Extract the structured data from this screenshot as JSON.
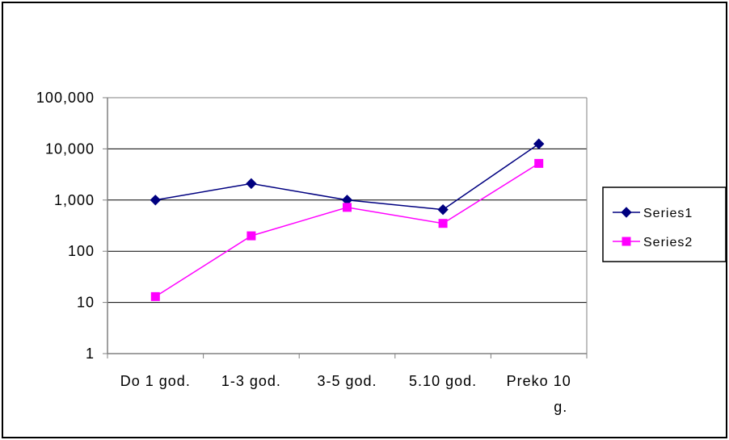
{
  "chart_data": {
    "type": "line",
    "title": "",
    "xlabel": "",
    "ylabel": "",
    "y_scale": "log",
    "ylim": [
      1,
      100000
    ],
    "y_ticks": [
      1,
      10,
      100,
      1000,
      10000,
      100000
    ],
    "y_tick_labels": [
      "1",
      "10",
      "100",
      "1,000",
      "10,000",
      "100,000"
    ],
    "categories": [
      "Do 1 god.",
      "1-3 god.",
      "3-5 god.",
      "5.10 god.",
      "Preko 10 g."
    ],
    "category_label_lines": [
      [
        "Do 1 god."
      ],
      [
        "1-3 god."
      ],
      [
        "3-5 god."
      ],
      [
        "5.10 god."
      ],
      [
        "Preko 10",
        "g."
      ]
    ],
    "grid": true,
    "legend_position": "right",
    "series": [
      {
        "name": "Series1",
        "values": [
          1000,
          2100,
          1000,
          650,
          12500
        ],
        "color": "#000080",
        "marker": "diamond"
      },
      {
        "name": "Series2",
        "values": [
          13,
          200,
          720,
          350,
          5200
        ],
        "color": "#ff00ff",
        "marker": "square"
      }
    ]
  },
  "colors": {
    "background": "#ffffff",
    "frame": "#000000",
    "gridline": "#000000",
    "axis": "#808080"
  }
}
